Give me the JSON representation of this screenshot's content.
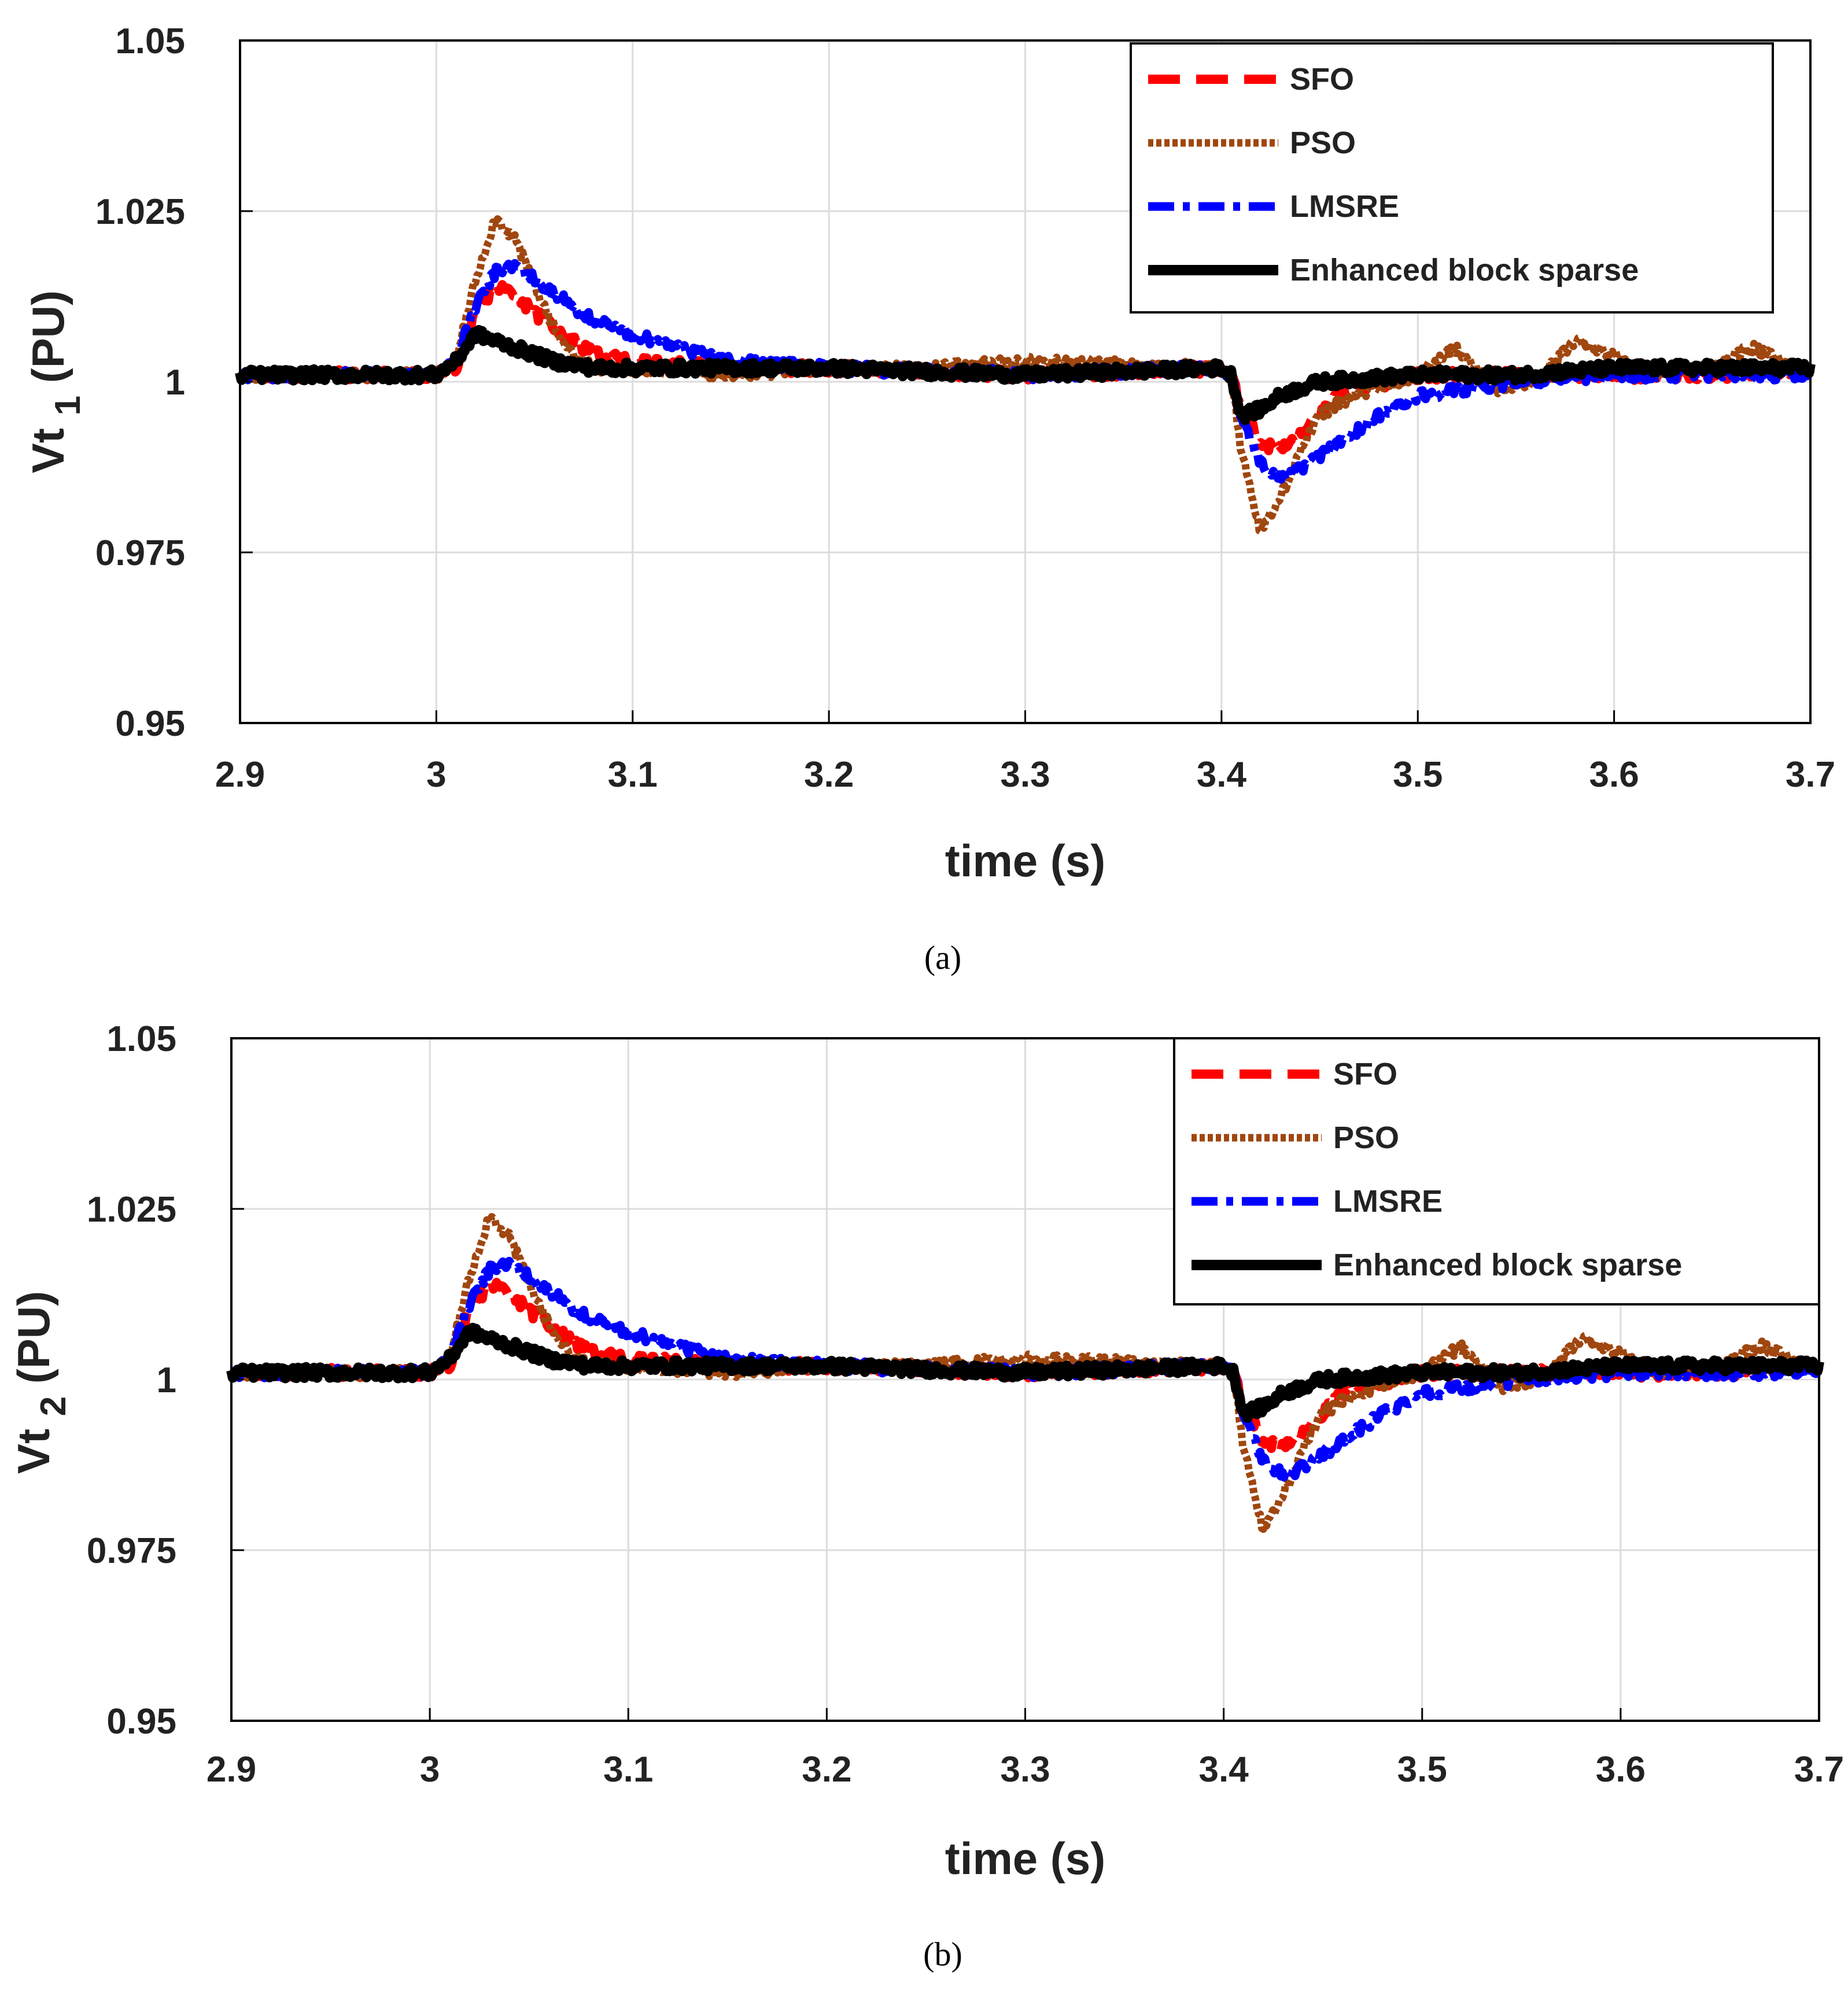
{
  "chart_data": [
    {
      "type": "line",
      "caption": "(a)",
      "xlabel": "time (s)",
      "ylabel": "Vt",
      "ylabel_sub": "1",
      "ylabel_unit": "(PU)",
      "xlim": [
        2.9,
        3.7
      ],
      "ylim": [
        0.95,
        1.05
      ],
      "xticks": [
        2.9,
        3.0,
        3.1,
        3.2,
        3.3,
        3.4,
        3.5,
        3.6,
        3.7
      ],
      "xtick_labels": [
        "2.9",
        "3",
        "3.1",
        "3.2",
        "3.3",
        "3.4",
        "3.5",
        "3.6",
        "3.7"
      ],
      "yticks": [
        0.95,
        0.975,
        1.0,
        1.025,
        1.05
      ],
      "ytick_labels": [
        "0.95",
        "0.975",
        "1",
        "1.025",
        "1.05"
      ],
      "grid": true,
      "legend": "top-right",
      "series": [
        {
          "name": "SFO",
          "color": "#ff0000",
          "style": "dashed",
          "points": [
            [
              2.9,
              1.001
            ],
            [
              3.0,
              1.001
            ],
            [
              3.01,
              1.002
            ],
            [
              3.02,
              1.01
            ],
            [
              3.03,
              1.014
            ],
            [
              3.04,
              1.013
            ],
            [
              3.05,
              1.01
            ],
            [
              3.06,
              1.008
            ],
            [
              3.07,
              1.006
            ],
            [
              3.08,
              1.004
            ],
            [
              3.1,
              1.003
            ],
            [
              3.15,
              1.002
            ],
            [
              3.2,
              1.002
            ],
            [
              3.3,
              1.001
            ],
            [
              3.4,
              1.002
            ],
            [
              3.405,
              1.001
            ],
            [
              3.41,
              0.996
            ],
            [
              3.42,
              0.991
            ],
            [
              3.43,
              0.99
            ],
            [
              3.44,
              0.992
            ],
            [
              3.45,
              0.995
            ],
            [
              3.46,
              0.998
            ],
            [
              3.47,
              0.999
            ],
            [
              3.5,
              1.001
            ],
            [
              3.55,
              1.001
            ],
            [
              3.6,
              1.001
            ],
            [
              3.65,
              1.001
            ],
            [
              3.7,
              1.002
            ]
          ]
        },
        {
          "name": "PSO",
          "color": "#a0460f",
          "style": "dotted",
          "points": [
            [
              2.9,
              1.001
            ],
            [
              3.0,
              1.001
            ],
            [
              3.01,
              1.003
            ],
            [
              3.02,
              1.015
            ],
            [
              3.03,
              1.024
            ],
            [
              3.04,
              1.021
            ],
            [
              3.05,
              1.014
            ],
            [
              3.06,
              1.008
            ],
            [
              3.07,
              1.004
            ],
            [
              3.08,
              1.002
            ],
            [
              3.1,
              1.002
            ],
            [
              3.15,
              1.001
            ],
            [
              3.2,
              1.002
            ],
            [
              3.25,
              1.002
            ],
            [
              3.3,
              1.003
            ],
            [
              3.4,
              1.002
            ],
            [
              3.405,
              1.001
            ],
            [
              3.41,
              0.99
            ],
            [
              3.42,
              0.978
            ],
            [
              3.43,
              0.983
            ],
            [
              3.44,
              0.99
            ],
            [
              3.45,
              0.995
            ],
            [
              3.46,
              0.997
            ],
            [
              3.48,
              0.999
            ],
            [
              3.5,
              1.001
            ],
            [
              3.52,
              1.005
            ],
            [
              3.54,
              0.999
            ],
            [
              3.56,
              1.0
            ],
            [
              3.58,
              1.006
            ],
            [
              3.6,
              1.004
            ],
            [
              3.62,
              1.001
            ],
            [
              3.65,
              1.002
            ],
            [
              3.67,
              1.005
            ],
            [
              3.7,
              1.001
            ]
          ]
        },
        {
          "name": "LMSRE",
          "color": "#0000ff",
          "style": "dashdot",
          "points": [
            [
              2.9,
              1.001
            ],
            [
              3.0,
              1.001
            ],
            [
              3.01,
              1.003
            ],
            [
              3.02,
              1.011
            ],
            [
              3.03,
              1.016
            ],
            [
              3.04,
              1.017
            ],
            [
              3.05,
              1.015
            ],
            [
              3.06,
              1.013
            ],
            [
              3.07,
              1.011
            ],
            [
              3.08,
              1.009
            ],
            [
              3.1,
              1.007
            ],
            [
              3.12,
              1.005
            ],
            [
              3.15,
              1.003
            ],
            [
              3.2,
              1.002
            ],
            [
              3.3,
              1.001
            ],
            [
              3.4,
              1.002
            ],
            [
              3.405,
              1.001
            ],
            [
              3.41,
              0.995
            ],
            [
              3.42,
              0.988
            ],
            [
              3.43,
              0.986
            ],
            [
              3.44,
              0.987
            ],
            [
              3.45,
              0.989
            ],
            [
              3.46,
              0.991
            ],
            [
              3.47,
              0.993
            ],
            [
              3.48,
              0.995
            ],
            [
              3.5,
              0.998
            ],
            [
              3.55,
              1.0
            ],
            [
              3.6,
              1.001
            ],
            [
              3.65,
              1.001
            ],
            [
              3.7,
              1.001
            ]
          ]
        },
        {
          "name": "Enhanced block sparse",
          "color": "#000000",
          "style": "solid",
          "points": [
            [
              2.9,
              1.001
            ],
            [
              3.0,
              1.001
            ],
            [
              3.01,
              1.003
            ],
            [
              3.02,
              1.007
            ],
            [
              3.03,
              1.006
            ],
            [
              3.04,
              1.005
            ],
            [
              3.05,
              1.004
            ],
            [
              3.06,
              1.003
            ],
            [
              3.08,
              1.002
            ],
            [
              3.1,
              1.002
            ],
            [
              3.2,
              1.002
            ],
            [
              3.3,
              1.001
            ],
            [
              3.4,
              1.002
            ],
            [
              3.405,
              1.001
            ],
            [
              3.41,
              0.995
            ],
            [
              3.42,
              0.996
            ],
            [
              3.43,
              0.998
            ],
            [
              3.44,
              0.999
            ],
            [
              3.45,
              1.0
            ],
            [
              3.5,
              1.001
            ],
            [
              3.55,
              1.001
            ],
            [
              3.6,
              1.002
            ],
            [
              3.65,
              1.002
            ],
            [
              3.7,
              1.002
            ]
          ]
        }
      ]
    },
    {
      "type": "line",
      "caption": "(b)",
      "xlabel": "time (s)",
      "ylabel": "Vt",
      "ylabel_sub": "2",
      "ylabel_unit": "(PU)",
      "xlim": [
        2.9,
        3.7
      ],
      "ylim": [
        0.95,
        1.05
      ],
      "xticks": [
        2.9,
        3.0,
        3.1,
        3.2,
        3.3,
        3.4,
        3.5,
        3.6,
        3.7
      ],
      "xtick_labels": [
        "2.9",
        "3",
        "3.1",
        "3.2",
        "3.3",
        "3.4",
        "3.5",
        "3.6",
        "3.7"
      ],
      "yticks": [
        0.95,
        0.975,
        1.0,
        1.025,
        1.05
      ],
      "ytick_labels": [
        "0.95",
        "0.975",
        "1",
        "1.025",
        "1.05"
      ],
      "grid": true,
      "legend": "top-right",
      "series": [
        {
          "name": "SFO",
          "color": "#ff0000",
          "style": "dashed",
          "points": [
            [
              2.9,
              1.001
            ],
            [
              3.0,
              1.001
            ],
            [
              3.01,
              1.002
            ],
            [
              3.02,
              1.01
            ],
            [
              3.03,
              1.014
            ],
            [
              3.04,
              1.013
            ],
            [
              3.05,
              1.01
            ],
            [
              3.06,
              1.008
            ],
            [
              3.07,
              1.006
            ],
            [
              3.08,
              1.004
            ],
            [
              3.1,
              1.003
            ],
            [
              3.15,
              1.002
            ],
            [
              3.2,
              1.002
            ],
            [
              3.3,
              1.001
            ],
            [
              3.4,
              1.002
            ],
            [
              3.405,
              1.001
            ],
            [
              3.41,
              0.996
            ],
            [
              3.42,
              0.991
            ],
            [
              3.43,
              0.99
            ],
            [
              3.44,
              0.992
            ],
            [
              3.45,
              0.995
            ],
            [
              3.46,
              0.998
            ],
            [
              3.47,
              0.999
            ],
            [
              3.5,
              1.001
            ],
            [
              3.55,
              1.001
            ],
            [
              3.6,
              1.001
            ],
            [
              3.65,
              1.001
            ],
            [
              3.7,
              1.002
            ]
          ]
        },
        {
          "name": "PSO",
          "color": "#a0460f",
          "style": "dotted",
          "points": [
            [
              2.9,
              1.001
            ],
            [
              3.0,
              1.001
            ],
            [
              3.01,
              1.003
            ],
            [
              3.02,
              1.015
            ],
            [
              3.03,
              1.024
            ],
            [
              3.04,
              1.021
            ],
            [
              3.05,
              1.014
            ],
            [
              3.06,
              1.008
            ],
            [
              3.07,
              1.004
            ],
            [
              3.08,
              1.002
            ],
            [
              3.1,
              1.002
            ],
            [
              3.15,
              1.001
            ],
            [
              3.2,
              1.002
            ],
            [
              3.25,
              1.002
            ],
            [
              3.3,
              1.003
            ],
            [
              3.4,
              1.002
            ],
            [
              3.405,
              1.001
            ],
            [
              3.41,
              0.99
            ],
            [
              3.42,
              0.978
            ],
            [
              3.43,
              0.983
            ],
            [
              3.44,
              0.99
            ],
            [
              3.45,
              0.995
            ],
            [
              3.46,
              0.997
            ],
            [
              3.48,
              0.999
            ],
            [
              3.5,
              1.001
            ],
            [
              3.52,
              1.005
            ],
            [
              3.54,
              0.999
            ],
            [
              3.56,
              1.0
            ],
            [
              3.58,
              1.006
            ],
            [
              3.6,
              1.004
            ],
            [
              3.62,
              1.001
            ],
            [
              3.65,
              1.002
            ],
            [
              3.67,
              1.005
            ],
            [
              3.7,
              1.001
            ]
          ]
        },
        {
          "name": "LMSRE",
          "color": "#0000ff",
          "style": "dashdot",
          "points": [
            [
              2.9,
              1.001
            ],
            [
              3.0,
              1.001
            ],
            [
              3.01,
              1.003
            ],
            [
              3.02,
              1.011
            ],
            [
              3.03,
              1.016
            ],
            [
              3.04,
              1.017
            ],
            [
              3.05,
              1.015
            ],
            [
              3.06,
              1.013
            ],
            [
              3.07,
              1.011
            ],
            [
              3.08,
              1.009
            ],
            [
              3.1,
              1.007
            ],
            [
              3.12,
              1.005
            ],
            [
              3.15,
              1.003
            ],
            [
              3.2,
              1.002
            ],
            [
              3.3,
              1.001
            ],
            [
              3.4,
              1.002
            ],
            [
              3.405,
              1.001
            ],
            [
              3.41,
              0.995
            ],
            [
              3.42,
              0.988
            ],
            [
              3.43,
              0.986
            ],
            [
              3.44,
              0.987
            ],
            [
              3.45,
              0.989
            ],
            [
              3.46,
              0.991
            ],
            [
              3.47,
              0.993
            ],
            [
              3.48,
              0.995
            ],
            [
              3.5,
              0.998
            ],
            [
              3.55,
              1.0
            ],
            [
              3.6,
              1.001
            ],
            [
              3.65,
              1.001
            ],
            [
              3.7,
              1.001
            ]
          ]
        },
        {
          "name": "Enhanced block sparse",
          "color": "#000000",
          "style": "solid",
          "points": [
            [
              2.9,
              1.001
            ],
            [
              3.0,
              1.001
            ],
            [
              3.01,
              1.003
            ],
            [
              3.02,
              1.007
            ],
            [
              3.03,
              1.006
            ],
            [
              3.04,
              1.005
            ],
            [
              3.05,
              1.004
            ],
            [
              3.06,
              1.003
            ],
            [
              3.08,
              1.002
            ],
            [
              3.1,
              1.002
            ],
            [
              3.2,
              1.002
            ],
            [
              3.3,
              1.001
            ],
            [
              3.4,
              1.002
            ],
            [
              3.405,
              1.001
            ],
            [
              3.41,
              0.995
            ],
            [
              3.42,
              0.996
            ],
            [
              3.43,
              0.998
            ],
            [
              3.44,
              0.999
            ],
            [
              3.45,
              1.0
            ],
            [
              3.5,
              1.001
            ],
            [
              3.55,
              1.001
            ],
            [
              3.6,
              1.002
            ],
            [
              3.65,
              1.002
            ],
            [
              3.7,
              1.002
            ]
          ]
        }
      ]
    }
  ]
}
